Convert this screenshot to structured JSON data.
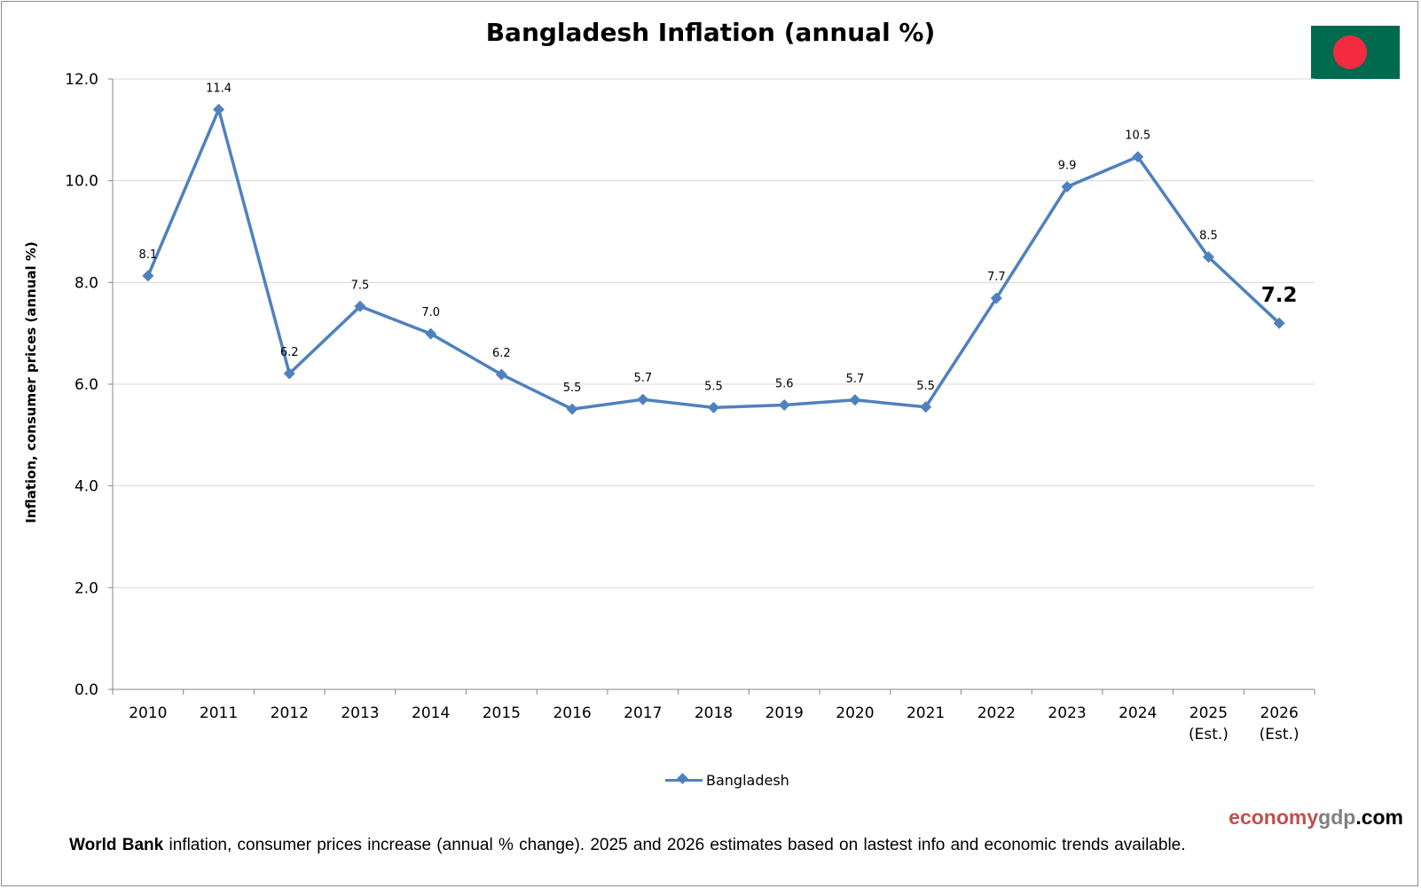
{
  "chart_data": {
    "type": "line",
    "title": "Bangladesh Inflation (annual %)",
    "ylabel": "Inflation, consumer prices (annual %)",
    "xlabel": "",
    "ylim": [
      0,
      12
    ],
    "yticks": [
      "0.0",
      "2.0",
      "4.0",
      "6.0",
      "8.0",
      "10.0",
      "12.0"
    ],
    "grid": true,
    "legend_position": "bottom",
    "categories": [
      [
        "2010"
      ],
      [
        "2011"
      ],
      [
        "2012"
      ],
      [
        "2013"
      ],
      [
        "2014"
      ],
      [
        "2015"
      ],
      [
        "2016"
      ],
      [
        "2017"
      ],
      [
        "2018"
      ],
      [
        "2019"
      ],
      [
        "2020"
      ],
      [
        "2021"
      ],
      [
        "2022"
      ],
      [
        "2023"
      ],
      [
        "2024"
      ],
      [
        "2025",
        "(Est.)"
      ],
      [
        "2026",
        "(Est.)"
      ]
    ],
    "series": [
      {
        "name": "Bangladesh",
        "color": "#4f81bd",
        "values": [
          8.13,
          11.4,
          6.21,
          7.53,
          6.99,
          6.19,
          5.51,
          5.7,
          5.54,
          5.59,
          5.69,
          5.55,
          7.69,
          9.88,
          10.47,
          8.5,
          7.2
        ],
        "labels": [
          "8.1",
          "11.4",
          "6.2",
          "7.5",
          "7.0",
          "6.2",
          "5.5",
          "5.7",
          "5.5",
          "5.6",
          "5.7",
          "5.5",
          "7.7",
          "9.9",
          "10.5",
          "8.5",
          "7.2"
        ]
      }
    ]
  },
  "footer": {
    "source_bold": "World Bank",
    "note": " inflation, consumer prices increase (annual % change).  2025 and 2026 estimates based on lastest info and economic trends available."
  },
  "brand": {
    "part1": "economy",
    "part2": "gdp",
    "part3": ".com"
  },
  "flag": {
    "name": "bangladesh-flag-icon",
    "field_color": "#006a4e",
    "disc_color": "#f42a41"
  }
}
